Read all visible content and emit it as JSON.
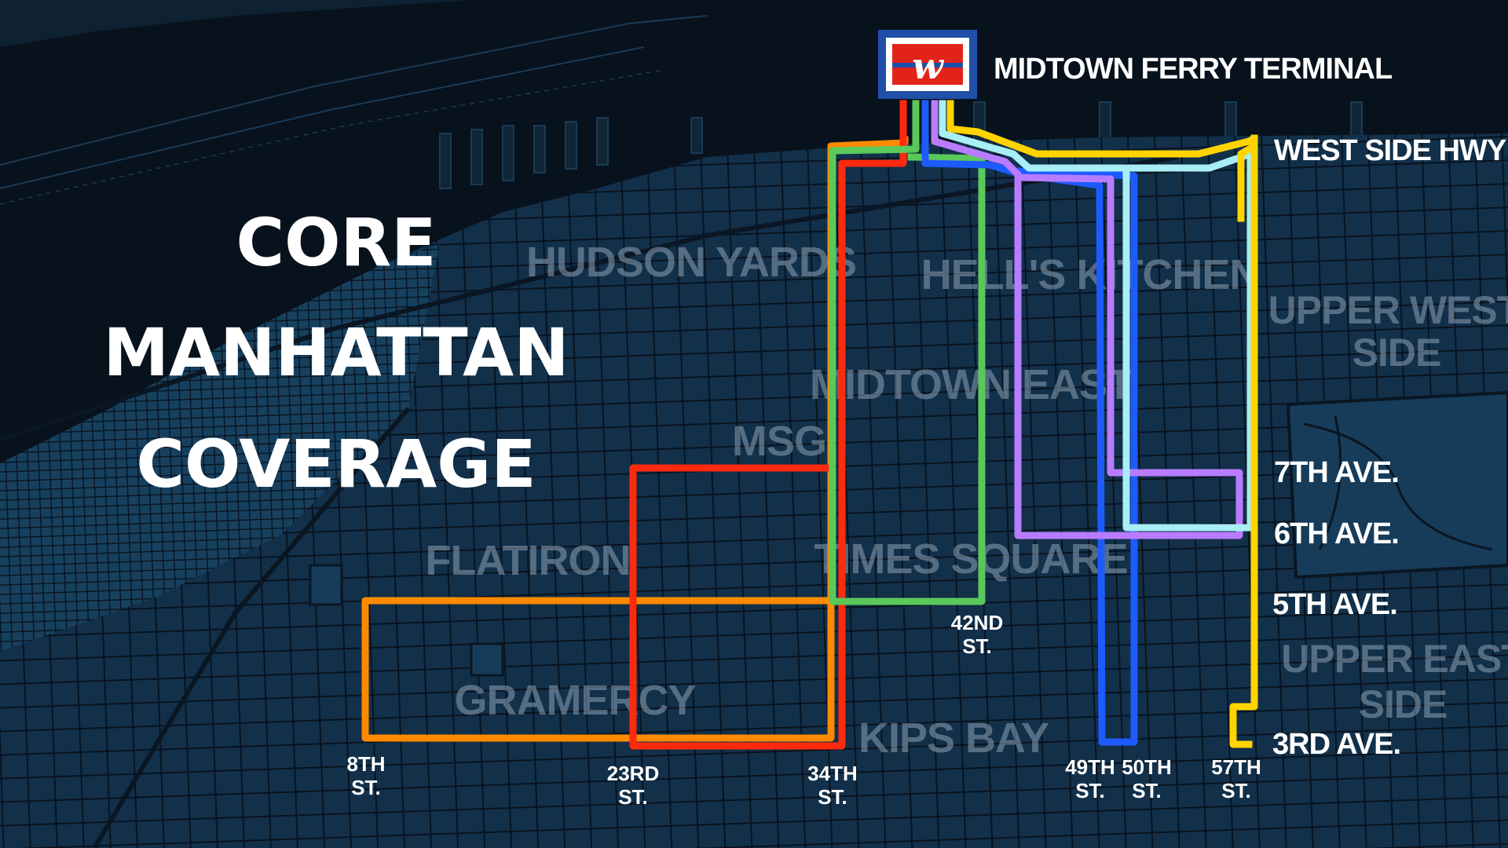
{
  "title": {
    "line1": "CORE",
    "line2": "MANHATTAN",
    "line3": "COVERAGE"
  },
  "terminal": {
    "logo_letter": "w",
    "name": "MIDTOWN FERRY TERMINAL",
    "icon": "ferry-logo-icon"
  },
  "neighborhoods": {
    "hudson_yards": "HUDSON YARDS",
    "hells_kitchen": "HELL'S KITCHEN",
    "upper_west_line1": "UPPER WEST",
    "upper_west_line2": "SIDE",
    "midtown_east": "MIDTOWN EAST",
    "msg": "MSG",
    "flatiron": "FLATIRON",
    "times_square": "TIMES SQUARE",
    "gramercy": "GRAMERCY",
    "kips_bay": "KIPS BAY",
    "upper_east_line1": "UPPER EAST",
    "upper_east_line2": "SIDE"
  },
  "avenue_labels": {
    "west_side_hwy": "WEST SIDE HWY",
    "seventh": "7TH AVE.",
    "sixth": "6TH AVE.",
    "fifth": "5TH AVE.",
    "third": "3RD AVE."
  },
  "street_labels": {
    "st8_a": "8TH",
    "st8_b": "ST.",
    "st23_a": "23RD",
    "st23_b": "ST.",
    "st34_a": "34TH",
    "st34_b": "ST.",
    "st42_a": "42ND",
    "st42_b": "ST.",
    "st49_a": "49TH",
    "st49_b": "ST.",
    "st50_a": "50TH",
    "st50_b": "ST.",
    "st57_a": "57TH",
    "st57_b": "ST."
  },
  "route_colors": {
    "orange": "#ff8a00",
    "red": "#ff2a0e",
    "green": "#5bc85a",
    "blue": "#1e5bff",
    "purple": "#b77cff",
    "cyan": "#a8eef5",
    "yellow": "#ffd400"
  },
  "colors": {
    "background": "#0b1a29",
    "water": "#07121d",
    "logo_red": "#e2231a",
    "logo_blue": "#1f4fa8"
  }
}
